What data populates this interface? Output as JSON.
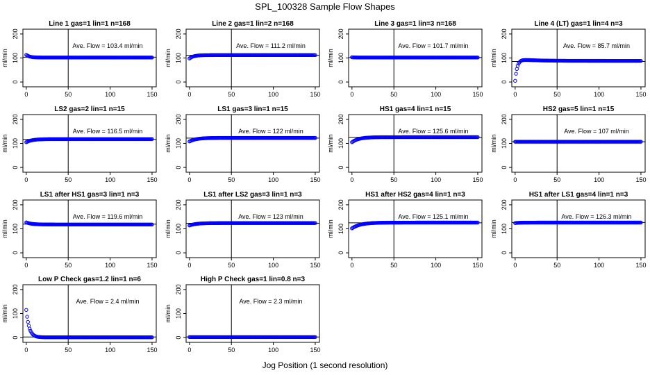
{
  "page": {
    "title": "SPL_100328  Sample Flow Shapes",
    "xlabel": "Jog Position (1 second resolution)"
  },
  "style": {
    "point_color": "#0000ff",
    "line_color": "#000000"
  },
  "chart_data": [
    {
      "type": "scatter",
      "title": "Line 1 gas=1 lin=1 n=168",
      "ylabel": "ml/min",
      "annotation": "Ave. Flow =  103.4  ml/min",
      "ave_flow": 103.4,
      "hline": 103.4,
      "vline": 50,
      "xlim": [
        -4,
        155
      ],
      "ylim": [
        -20,
        220
      ],
      "xticks": [
        0,
        50,
        100,
        150
      ],
      "yticks": [
        0,
        100,
        200
      ],
      "shape": {
        "start": 113,
        "end": 102,
        "tau": 4
      }
    },
    {
      "type": "scatter",
      "title": "Line 2 gas=1 lin=2 n=168",
      "ylabel": "ml/min",
      "annotation": "Ave. Flow =  111.2  ml/min",
      "ave_flow": 111.2,
      "hline": 111.2,
      "vline": 50,
      "xlim": [
        -4,
        155
      ],
      "ylim": [
        -20,
        220
      ],
      "xticks": [
        0,
        50,
        100,
        150
      ],
      "yticks": [
        0,
        100,
        200
      ],
      "shape": {
        "start": 98,
        "end": 112,
        "tau": 5
      }
    },
    {
      "type": "scatter",
      "title": "Line 3 gas=1 lin=3 n=168",
      "ylabel": "ml/min",
      "annotation": "Ave. Flow =  101.7  ml/min",
      "ave_flow": 101.7,
      "hline": 101.7,
      "vline": 50,
      "xlim": [
        -4,
        155
      ],
      "ylim": [
        -20,
        220
      ],
      "xticks": [
        0,
        50,
        100,
        150
      ],
      "yticks": [
        0,
        100,
        200
      ],
      "shape": {
        "start": 103,
        "end": 102,
        "tau": 3
      }
    },
    {
      "type": "scatter",
      "title": "Line 4 (LT) gas=1 lin=4 n=3",
      "ylabel": "ml/min",
      "annotation": "Ave. Flow =  85.7  ml/min",
      "ave_flow": 85.7,
      "hline": 85.7,
      "vline": 50,
      "xlim": [
        -4,
        155
      ],
      "ylim": [
        -20,
        220
      ],
      "xticks": [
        0,
        50,
        100,
        150
      ],
      "yticks": [
        0,
        100,
        200
      ],
      "shape": {
        "start": 5,
        "end": 88,
        "tau": 2.5,
        "overshoot": 8,
        "overshoot_tau": 20
      }
    },
    {
      "type": "scatter",
      "title": "LS2 gas=2 lin=1 n=15",
      "ylabel": "ml/min",
      "annotation": "Ave. Flow =  116.5  ml/min",
      "ave_flow": 116.5,
      "hline": 116.5,
      "vline": 50,
      "xlim": [
        -4,
        155
      ],
      "ylim": [
        -20,
        220
      ],
      "xticks": [
        0,
        50,
        100,
        150
      ],
      "yticks": [
        0,
        100,
        200
      ],
      "shape": {
        "start": 105,
        "end": 118,
        "tau": 7
      }
    },
    {
      "type": "scatter",
      "title": "LS1 gas=3 lin=1 n=15",
      "ylabel": "ml/min",
      "annotation": "Ave. Flow =  122  ml/min",
      "ave_flow": 122,
      "hline": 122,
      "vline": 50,
      "xlim": [
        -4,
        155
      ],
      "ylim": [
        -20,
        220
      ],
      "xticks": [
        0,
        50,
        100,
        150
      ],
      "yticks": [
        0,
        100,
        200
      ],
      "shape": {
        "start": 108,
        "end": 123,
        "tau": 8
      }
    },
    {
      "type": "scatter",
      "title": "HS1 gas=4 lin=1 n=15",
      "ylabel": "ml/min",
      "annotation": "Ave. Flow =  125.6  ml/min",
      "ave_flow": 125.6,
      "hline": 125.6,
      "vline": 50,
      "xlim": [
        -4,
        155
      ],
      "ylim": [
        -20,
        220
      ],
      "xticks": [
        0,
        50,
        100,
        150
      ],
      "yticks": [
        0,
        100,
        200
      ],
      "shape": {
        "start": 105,
        "end": 126,
        "tau": 8
      }
    },
    {
      "type": "scatter",
      "title": "HS2 gas=5 lin=1 n=15",
      "ylabel": "ml/min",
      "annotation": "Ave. Flow =  107  ml/min",
      "ave_flow": 107,
      "hline": 107,
      "vline": 50,
      "xlim": [
        -4,
        155
      ],
      "ylim": [
        -20,
        220
      ],
      "xticks": [
        0,
        50,
        100,
        150
      ],
      "yticks": [
        0,
        100,
        200
      ],
      "shape": {
        "start": 107,
        "end": 107,
        "tau": 3
      }
    },
    {
      "type": "scatter",
      "title": "LS1 after HS1 gas=3 lin=1 n=3",
      "ylabel": "ml/min",
      "annotation": "Ave. Flow =  119.6  ml/min",
      "ave_flow": 119.6,
      "hline": 119.6,
      "vline": 50,
      "xlim": [
        -4,
        155
      ],
      "ylim": [
        -20,
        220
      ],
      "xticks": [
        0,
        50,
        100,
        150
      ],
      "yticks": [
        0,
        100,
        200
      ],
      "shape": {
        "start": 127,
        "end": 118,
        "tau": 6
      }
    },
    {
      "type": "scatter",
      "title": "LS1 after LS2 gas=3 lin=1 n=3",
      "ylabel": "ml/min",
      "annotation": "Ave. Flow =  123  ml/min",
      "ave_flow": 123,
      "hline": 123,
      "vline": 50,
      "xlim": [
        -4,
        155
      ],
      "ylim": [
        -20,
        220
      ],
      "xticks": [
        0,
        50,
        100,
        150
      ],
      "yticks": [
        0,
        100,
        200
      ],
      "shape": {
        "start": 114,
        "end": 124,
        "tau": 8
      }
    },
    {
      "type": "scatter",
      "title": "HS1 after HS2 gas=4 lin=1 n=3",
      "ylabel": "ml/min",
      "annotation": "Ave. Flow =  125.1  ml/min",
      "ave_flow": 125.1,
      "hline": 125.1,
      "vline": 50,
      "xlim": [
        -4,
        155
      ],
      "ylim": [
        -20,
        220
      ],
      "xticks": [
        0,
        50,
        100,
        150
      ],
      "yticks": [
        0,
        100,
        200
      ],
      "shape": {
        "start": 102,
        "end": 126,
        "tau": 10
      }
    },
    {
      "type": "scatter",
      "title": "HS1 after LS1 gas=4 lin=1 n=3",
      "ylabel": "ml/min",
      "annotation": "Ave. Flow =  126.3  ml/min",
      "ave_flow": 126.3,
      "hline": 126.3,
      "vline": 50,
      "xlim": [
        -4,
        155
      ],
      "ylim": [
        -20,
        220
      ],
      "xticks": [
        0,
        50,
        100,
        150
      ],
      "yticks": [
        0,
        100,
        200
      ],
      "shape": {
        "start": 124,
        "end": 126,
        "tau": 5
      }
    },
    {
      "type": "scatter",
      "title": "Low P Check gas=1.2 lin=1 n=6",
      "ylabel": "ml/min",
      "annotation": "Ave. Flow =  2.4  ml/min",
      "ave_flow": 2.4,
      "hline": 2.4,
      "vline": 50,
      "xlim": [
        -4,
        155
      ],
      "ylim": [
        -20,
        220
      ],
      "xticks": [
        0,
        50,
        100,
        150
      ],
      "yticks": [
        0,
        100,
        200
      ],
      "shape": {
        "start": 115,
        "end": 1,
        "tau": 3.5
      }
    },
    {
      "type": "scatter",
      "title": "High P Check gas=1 lin=0.8 n=3",
      "ylabel": "ml/min",
      "annotation": "Ave. Flow =  2.3  ml/min",
      "ave_flow": 2.3,
      "hline": 2.3,
      "vline": 50,
      "xlim": [
        -4,
        155
      ],
      "ylim": [
        -20,
        220
      ],
      "xticks": [
        0,
        50,
        100,
        150
      ],
      "yticks": [
        0,
        100,
        200
      ],
      "shape": {
        "start": 2,
        "end": 2,
        "tau": 3
      }
    }
  ]
}
